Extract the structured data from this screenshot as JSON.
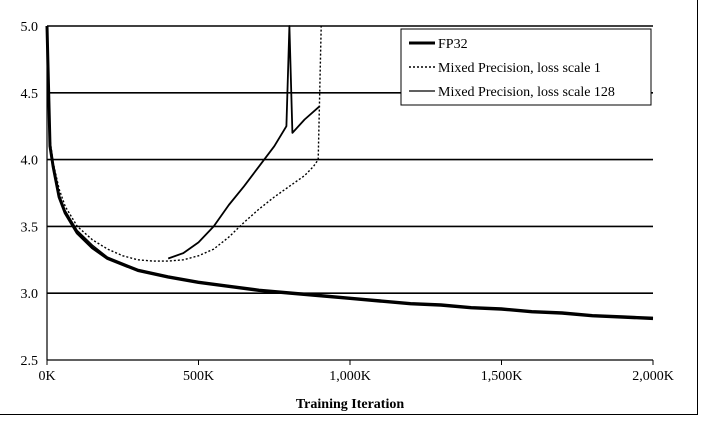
{
  "chart_data": {
    "type": "line",
    "title": "",
    "xlabel": "Training Iteration",
    "ylabel": "",
    "xlim": [
      0,
      2000
    ],
    "ylim": [
      2.5,
      5.0
    ],
    "x_ticks": [
      0,
      500,
      1000,
      1500,
      2000
    ],
    "x_tick_labels": [
      "0K",
      "500K",
      "1,000K",
      "1,500K",
      "2,000K"
    ],
    "y_ticks": [
      2.5,
      3.0,
      3.5,
      4.0,
      4.5,
      5.0
    ],
    "y_tick_labels": [
      "2.5",
      "3.0",
      "3.5",
      "4.0",
      "4.5",
      "5.0"
    ],
    "grid": "horizontal",
    "legend_position": "top-right",
    "series": [
      {
        "name": "FP32",
        "color": "#000000",
        "style": "thick",
        "x": [
          0,
          10,
          20,
          40,
          60,
          100,
          150,
          200,
          300,
          400,
          500,
          600,
          700,
          800,
          900,
          1000,
          1100,
          1200,
          1300,
          1400,
          1500,
          1600,
          1700,
          1800,
          1900,
          2000
        ],
        "y": [
          5.0,
          4.1,
          3.95,
          3.72,
          3.6,
          3.45,
          3.34,
          3.26,
          3.17,
          3.12,
          3.08,
          3.05,
          3.02,
          3.0,
          2.98,
          2.96,
          2.94,
          2.92,
          2.91,
          2.89,
          2.88,
          2.86,
          2.85,
          2.83,
          2.82,
          2.81
        ]
      },
      {
        "name": "Mixed Precision, loss scale 1",
        "color": "#000000",
        "style": "dotted",
        "x": [
          0,
          10,
          20,
          40,
          60,
          100,
          150,
          200,
          250,
          300,
          350,
          400,
          450,
          500,
          550,
          600,
          650,
          700,
          750,
          800,
          850,
          880,
          895,
          905
        ],
        "y": [
          5.0,
          4.15,
          3.98,
          3.78,
          3.65,
          3.5,
          3.4,
          3.33,
          3.28,
          3.25,
          3.24,
          3.24,
          3.25,
          3.28,
          3.33,
          3.42,
          3.53,
          3.63,
          3.72,
          3.8,
          3.88,
          3.95,
          4.0,
          5.0
        ]
      },
      {
        "name": "Mixed Precision, loss scale 128",
        "color": "#000000",
        "style": "thin",
        "x": [
          0,
          10,
          20,
          40,
          60,
          100,
          150,
          200,
          300,
          400,
          500,
          600,
          700,
          800,
          900,
          1000,
          1100,
          1200,
          1300,
          1400,
          1500,
          1600,
          1700,
          1800,
          1900,
          2000
        ],
        "y": [
          5.0,
          4.12,
          3.97,
          3.74,
          3.62,
          3.47,
          3.36,
          3.27,
          3.18,
          3.13,
          3.09,
          3.06,
          3.03,
          3.01,
          2.99,
          2.97,
          2.95,
          2.93,
          2.92,
          2.9,
          2.89,
          2.87,
          2.86,
          2.84,
          2.83,
          2.82
        ]
      },
      {
        "name": "",
        "color": "#000000",
        "style": "medium",
        "x": [
          400,
          450,
          500,
          550,
          600,
          650,
          700,
          750,
          790,
          800,
          810,
          850,
          900
        ],
        "y": [
          3.26,
          3.3,
          3.38,
          3.5,
          3.66,
          3.8,
          3.95,
          4.1,
          4.25,
          5.0,
          4.2,
          4.3,
          4.4
        ]
      }
    ]
  }
}
